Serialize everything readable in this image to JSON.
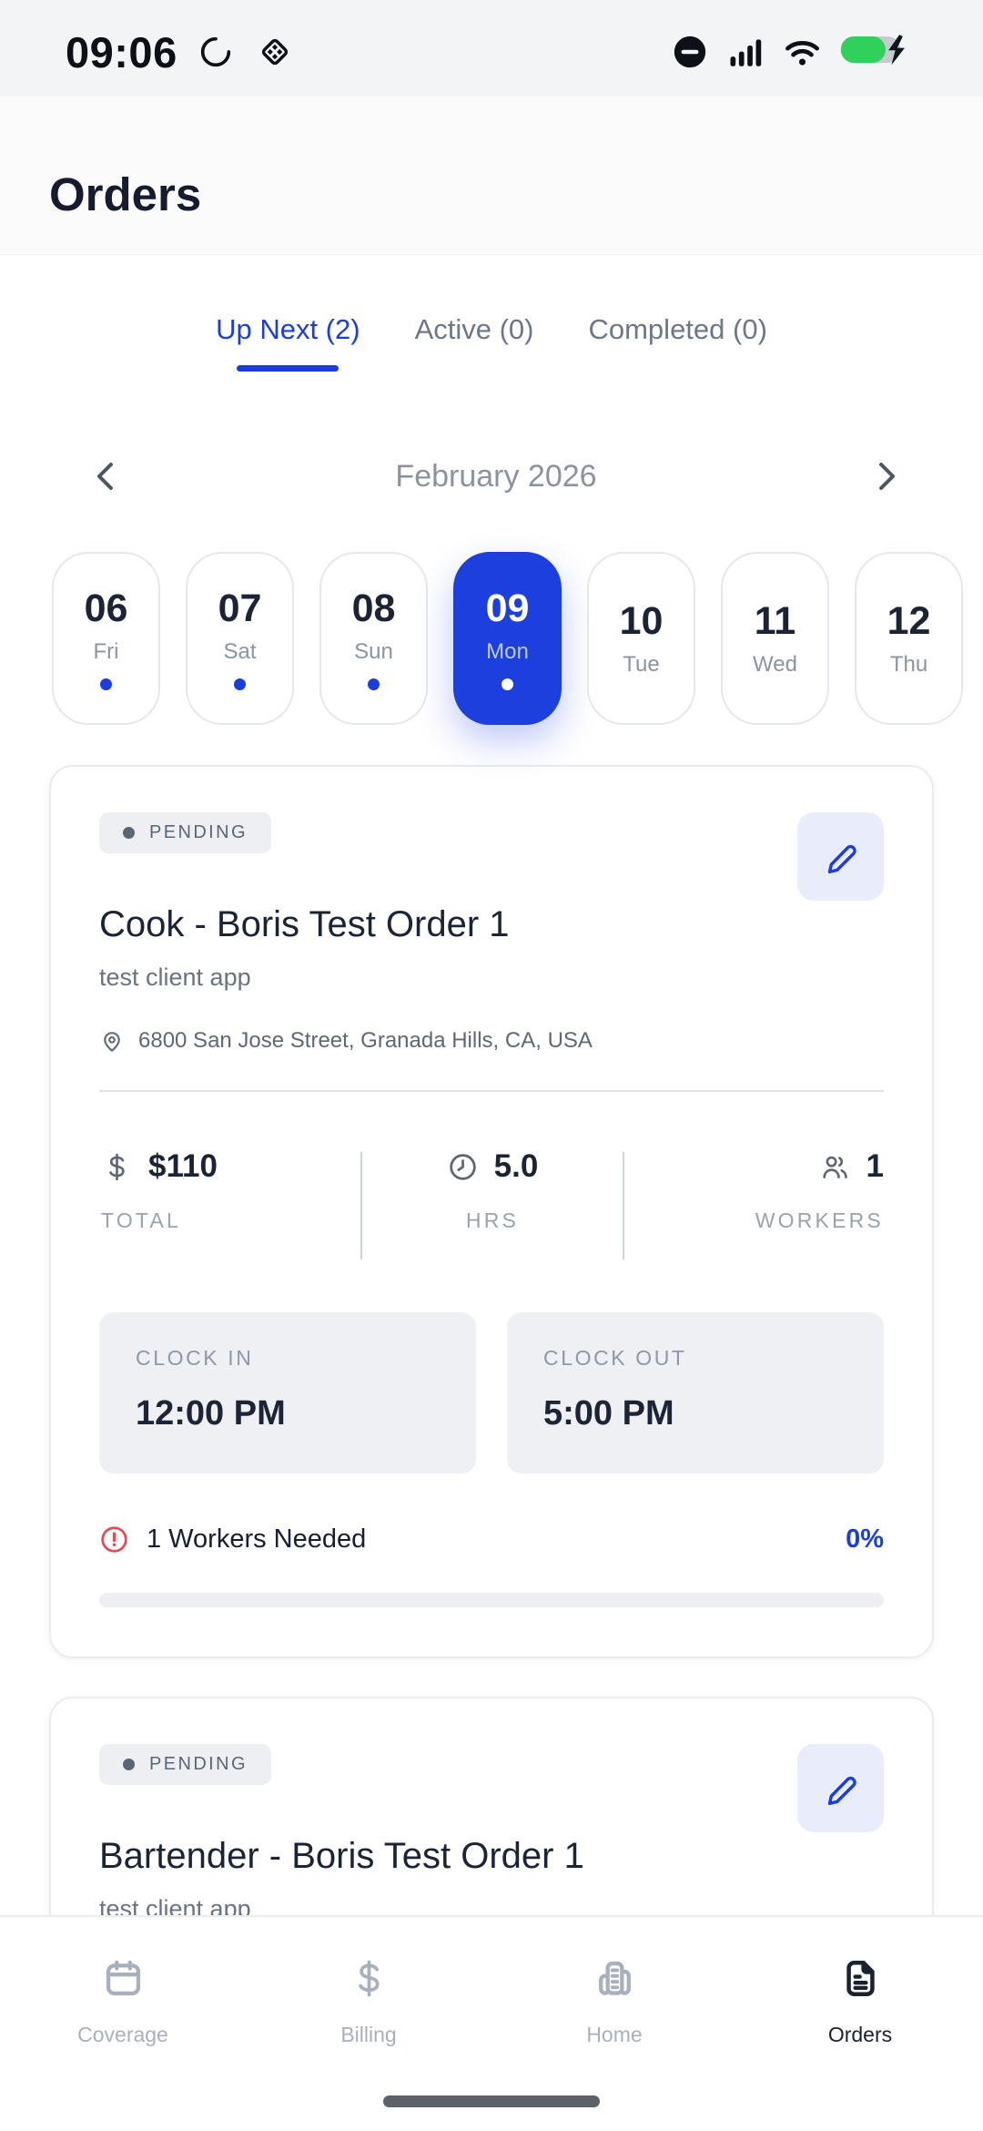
{
  "colors": {
    "accent": "#1b3de0",
    "day_blue": "#1c3fdd",
    "battery_green": "#2fd05b",
    "alert_red": "#e54b4f"
  },
  "status_bar": {
    "time": "09:06",
    "icons": [
      "sync-spinner",
      "diamond-badge",
      "do-not-disturb",
      "cellular-signal",
      "wifi",
      "battery-charging"
    ]
  },
  "header": {
    "title": "Orders"
  },
  "tabs": [
    {
      "label": "Up Next (2)",
      "active": true
    },
    {
      "label": "Active (0)",
      "active": false
    },
    {
      "label": "Completed (0)",
      "active": false
    }
  ],
  "calendar": {
    "month_label": "February 2026",
    "prev_icon": "chevron-left",
    "next_icon": "chevron-right",
    "days": [
      {
        "num": "06",
        "dow": "Fri",
        "has_orders": true,
        "selected": false
      },
      {
        "num": "07",
        "dow": "Sat",
        "has_orders": true,
        "selected": false
      },
      {
        "num": "08",
        "dow": "Sun",
        "has_orders": true,
        "selected": false
      },
      {
        "num": "09",
        "dow": "Mon",
        "has_orders": true,
        "selected": true
      },
      {
        "num": "10",
        "dow": "Tue",
        "has_orders": false,
        "selected": false
      },
      {
        "num": "11",
        "dow": "Wed",
        "has_orders": false,
        "selected": false
      },
      {
        "num": "12",
        "dow": "Thu",
        "has_orders": false,
        "selected": false
      }
    ]
  },
  "orders": [
    {
      "status": "PENDING",
      "title": "Cook - Boris Test Order 1",
      "client": "test client app",
      "address": "6800 San Jose Street, Granada Hills, CA, USA",
      "stats": [
        {
          "icon": "dollar",
          "value": "$110",
          "label": "TOTAL"
        },
        {
          "icon": "clock",
          "value": "5.0",
          "label": "HRS"
        },
        {
          "icon": "people",
          "value": "1",
          "label": "WORKERS"
        }
      ],
      "clock_in_label": "CLOCK IN",
      "clock_in": "12:00 PM",
      "clock_out_label": "CLOCK OUT",
      "clock_out": "5:00 PM",
      "workers_needed": "1 Workers Needed",
      "percent_label": "0%"
    },
    {
      "status": "PENDING",
      "title": "Bartender - Boris Test Order 1",
      "client": "test client app"
    }
  ],
  "bottom_nav": [
    {
      "label": "Coverage",
      "icon": "calendar",
      "active": false
    },
    {
      "label": "Billing",
      "icon": "dollar-sign",
      "active": false
    },
    {
      "label": "Home",
      "icon": "building",
      "active": false
    },
    {
      "label": "Orders",
      "icon": "document",
      "active": true
    }
  ]
}
